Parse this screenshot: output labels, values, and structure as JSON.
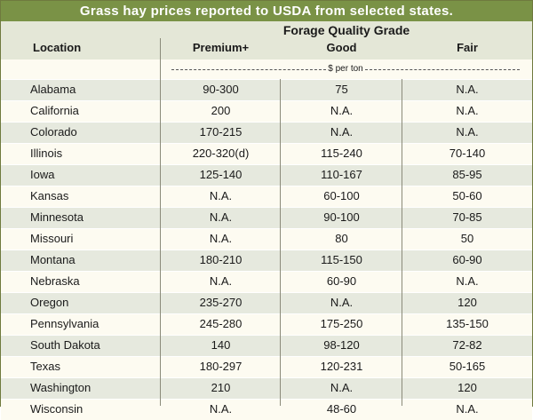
{
  "title": "Grass hay prices reported to USDA from selected states.",
  "header": {
    "group_label": "Forage Quality Grade",
    "location": "Location",
    "premium": "Premium+",
    "good": "Good",
    "fair": "Fair"
  },
  "units": "$ per ton",
  "rows": [
    {
      "location": "Alabama",
      "premium": "90-300",
      "good": "75",
      "fair": "N.A."
    },
    {
      "location": "California",
      "premium": "200",
      "good": "N.A.",
      "fair": "N.A."
    },
    {
      "location": "Colorado",
      "premium": "170-215",
      "good": "N.A.",
      "fair": "N.A."
    },
    {
      "location": "Illinois",
      "premium": "220-320(d)",
      "good": "115-240",
      "fair": "70-140"
    },
    {
      "location": "Iowa",
      "premium": "125-140",
      "good": "110-167",
      "fair": "85-95"
    },
    {
      "location": "Kansas",
      "premium": "N.A.",
      "good": "60-100",
      "fair": "50-60"
    },
    {
      "location": "Minnesota",
      "premium": "N.A.",
      "good": "90-100",
      "fair": "70-85"
    },
    {
      "location": "Missouri",
      "premium": "N.A.",
      "good": "80",
      "fair": "50"
    },
    {
      "location": "Montana",
      "premium": "180-210",
      "good": "115-150",
      "fair": "60-90"
    },
    {
      "location": "Nebraska",
      "premium": "N.A.",
      "good": "60-90",
      "fair": "N.A."
    },
    {
      "location": "Oregon",
      "premium": "235-270",
      "good": "N.A.",
      "fair": "120"
    },
    {
      "location": "Pennsylvania",
      "premium": "245-280",
      "good": "175-250",
      "fair": "135-150"
    },
    {
      "location": "South Dakota",
      "premium": "140",
      "good": "98-120",
      "fair": "72-82"
    },
    {
      "location": "Texas",
      "premium": "180-297",
      "good": "120-231",
      "fair": "50-165"
    },
    {
      "location": "Washington",
      "premium": "210",
      "good": "N.A.",
      "fair": "120"
    },
    {
      "location": "Wisconsin",
      "premium": "N.A.",
      "good": "48-60",
      "fair": "N.A."
    }
  ],
  "colors": {
    "title_bar": "#7a9246",
    "header_bg": "#e4e7d7",
    "row_shaded": "#e6e9de",
    "row_plain": "#fdfbf1"
  }
}
